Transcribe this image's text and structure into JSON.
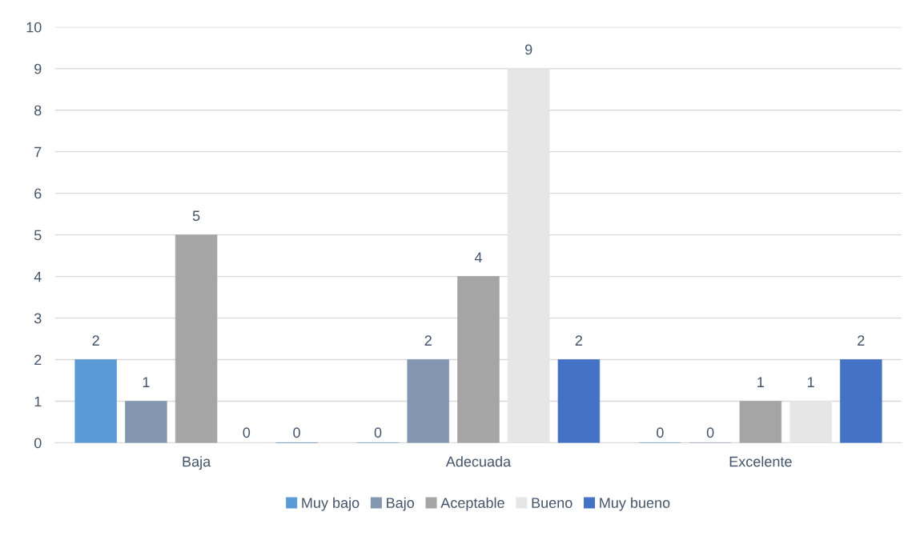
{
  "chart_data": {
    "type": "bar",
    "categories": [
      "Baja",
      "Adecuada",
      "Excelente"
    ],
    "series": [
      {
        "name": "Muy bajo",
        "color": "#5b9bd5",
        "values": [
          2,
          0,
          0
        ]
      },
      {
        "name": "Bajo",
        "color": "#8497b0",
        "values": [
          1,
          2,
          0
        ]
      },
      {
        "name": "Aceptable",
        "color": "#a5a5a5",
        "values": [
          5,
          4,
          1
        ]
      },
      {
        "name": "Bueno",
        "color": "#e7e6e6",
        "values": [
          0,
          9,
          1
        ]
      },
      {
        "name": "Muy bueno",
        "color": "#4472c4",
        "values": [
          0,
          2,
          2
        ]
      }
    ],
    "ylim": [
      0,
      10
    ],
    "yticks": [
      0,
      1,
      2,
      3,
      4,
      5,
      6,
      7,
      8,
      9,
      10
    ],
    "grid": "y",
    "legend": "bottom",
    "data_labels": true
  }
}
